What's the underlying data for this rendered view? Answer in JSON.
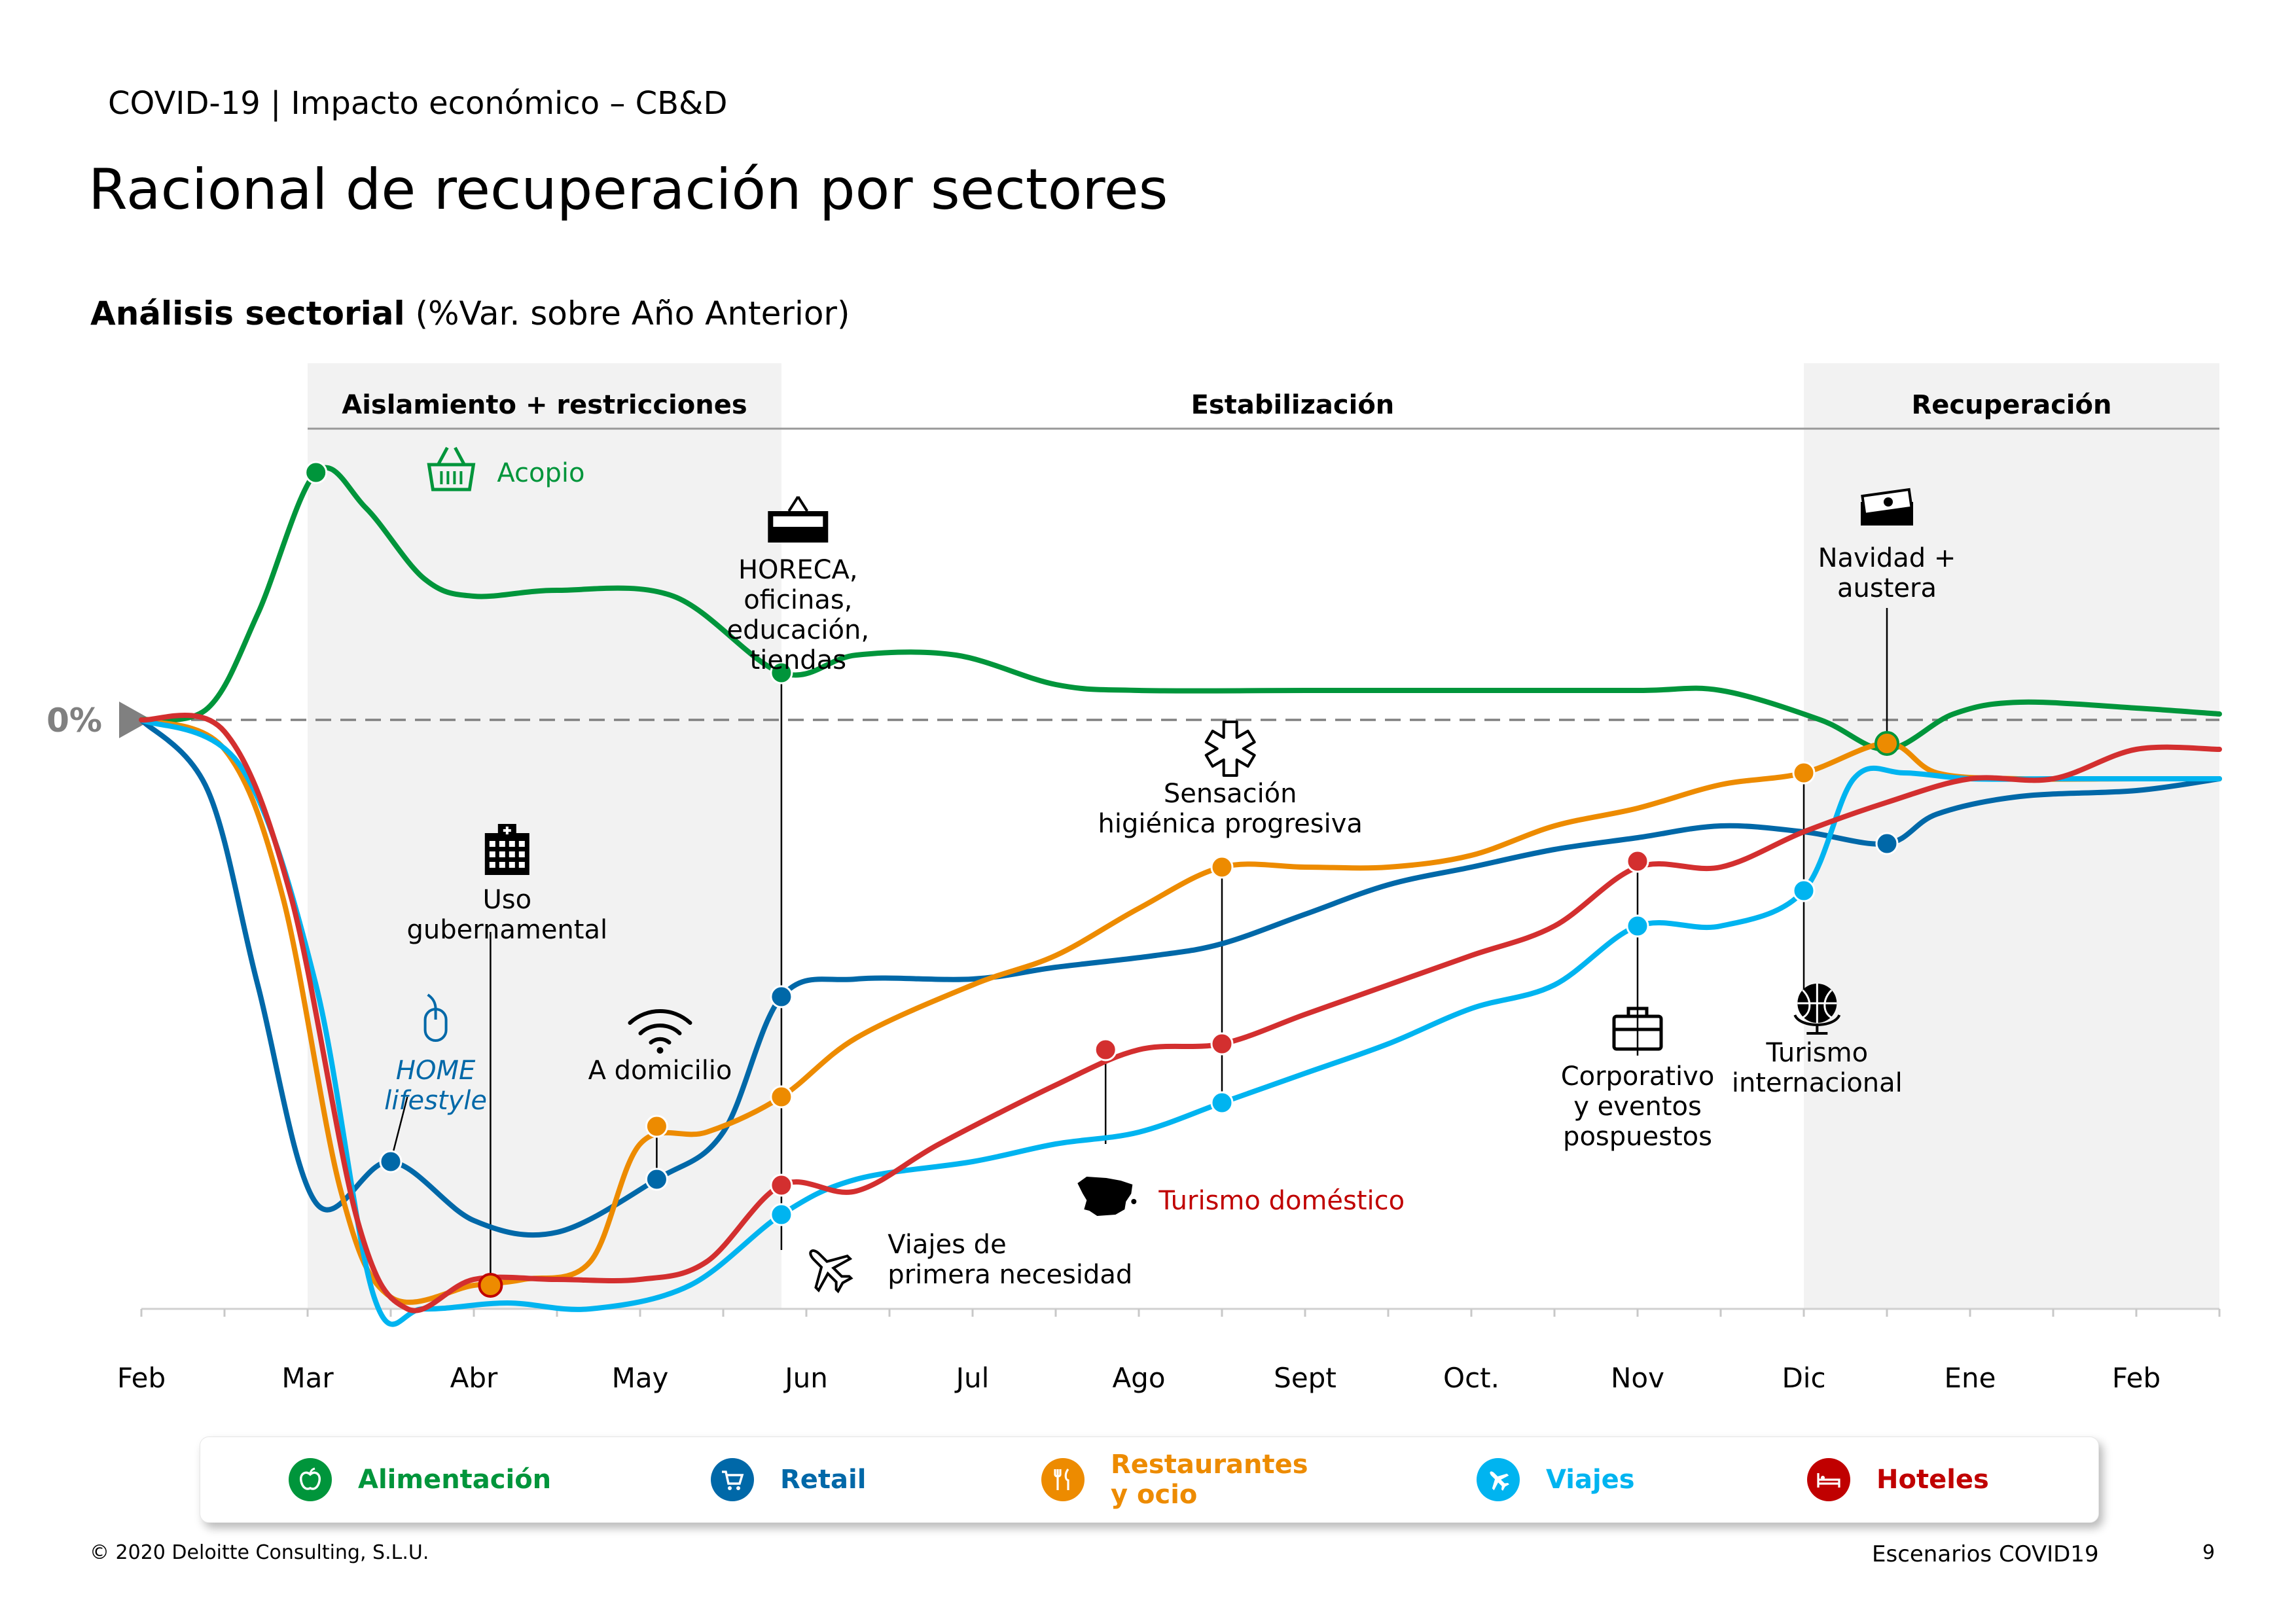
{
  "header": {
    "breadcrumb": "COVID-19 | Impacto económico – CB&D",
    "title": "Racional de recuperación por sectores",
    "subtitle_bold": "Análisis sectorial",
    "subtitle_rest": " (%Var. sobre Año Anterior)"
  },
  "chart_data": {
    "type": "line",
    "x_labels": [
      "Feb",
      "Mar",
      "Abr",
      "May",
      "Jun",
      "Jul",
      "Ago",
      "Sept",
      "Oct.",
      "Nov",
      "Dic",
      "Ene",
      "Feb"
    ],
    "zero_label": "0%",
    "phases": [
      {
        "label": "Aislamiento + restricciones",
        "start": 1,
        "end": 3.85,
        "shaded": true
      },
      {
        "label": "Estabilización",
        "start": 3.85,
        "end": 10,
        "shaded": false
      },
      {
        "label": "Recuperación",
        "start": 10,
        "end": 12.5,
        "shaded": true
      }
    ],
    "ylim": [
      -100,
      42
    ],
    "series": [
      {
        "name": "Alimentación",
        "color": "#00953B",
        "points": [
          [
            0,
            0
          ],
          [
            0.4,
            2
          ],
          [
            0.7,
            18
          ],
          [
            1.05,
            42
          ],
          [
            1.35,
            36
          ],
          [
            1.7,
            24
          ],
          [
            2,
            21
          ],
          [
            2.5,
            22
          ],
          [
            3.2,
            21
          ],
          [
            3.85,
            8
          ],
          [
            4.3,
            11
          ],
          [
            4.9,
            11
          ],
          [
            5.5,
            6
          ],
          [
            6,
            5
          ],
          [
            7,
            5
          ],
          [
            8,
            5
          ],
          [
            9,
            5
          ],
          [
            9.5,
            5
          ],
          [
            10.1,
            0
          ],
          [
            10.5,
            -5
          ],
          [
            10.9,
            1
          ],
          [
            11.3,
            3
          ],
          [
            12,
            2
          ],
          [
            12.5,
            1
          ]
        ]
      },
      {
        "name": "Retail",
        "color": "#0068A8",
        "points": [
          [
            0,
            0
          ],
          [
            0.4,
            -12
          ],
          [
            0.7,
            -45
          ],
          [
            1.05,
            -82
          ],
          [
            1.5,
            -75
          ],
          [
            2,
            -85
          ],
          [
            2.5,
            -87
          ],
          [
            3.1,
            -78
          ],
          [
            3.5,
            -70
          ],
          [
            3.85,
            -47
          ],
          [
            4.3,
            -44
          ],
          [
            5,
            -44
          ],
          [
            5.5,
            -42
          ],
          [
            6.1,
            -40
          ],
          [
            6.5,
            -38
          ],
          [
            7,
            -33
          ],
          [
            7.5,
            -28
          ],
          [
            8,
            -25
          ],
          [
            8.5,
            -22
          ],
          [
            9,
            -20
          ],
          [
            9.5,
            -18
          ],
          [
            10,
            -19
          ],
          [
            10.5,
            -21
          ],
          [
            10.8,
            -16
          ],
          [
            11.3,
            -13
          ],
          [
            12,
            -12
          ],
          [
            12.5,
            -10
          ]
        ]
      },
      {
        "name": "Restaurantes y ocio",
        "color": "#ED8B00",
        "points": [
          [
            0,
            0
          ],
          [
            0.5,
            -5
          ],
          [
            0.85,
            -30
          ],
          [
            1.2,
            -80
          ],
          [
            1.5,
            -98
          ],
          [
            2,
            -96
          ],
          [
            2.3,
            -95
          ],
          [
            2.7,
            -92
          ],
          [
            3,
            -72
          ],
          [
            3.4,
            -70
          ],
          [
            3.85,
            -64
          ],
          [
            4.3,
            -54
          ],
          [
            5,
            -45
          ],
          [
            5.5,
            -40
          ],
          [
            6,
            -32
          ],
          [
            6.5,
            -25
          ],
          [
            7,
            -25
          ],
          [
            7.5,
            -25
          ],
          [
            8,
            -23
          ],
          [
            8.5,
            -18
          ],
          [
            9,
            -15
          ],
          [
            9.5,
            -11
          ],
          [
            10,
            -9
          ],
          [
            10.5,
            -4
          ],
          [
            10.8,
            -9
          ],
          [
            11.3,
            -10
          ],
          [
            12,
            -10
          ],
          [
            12.5,
            -10
          ]
        ]
      },
      {
        "name": "Viajes",
        "color": "#00B4F0",
        "points": [
          [
            0,
            0
          ],
          [
            0.6,
            -8
          ],
          [
            1.05,
            -45
          ],
          [
            1.4,
            -98
          ],
          [
            1.7,
            -100
          ],
          [
            2.2,
            -99
          ],
          [
            2.7,
            -100
          ],
          [
            3.3,
            -96
          ],
          [
            3.85,
            -84
          ],
          [
            4.3,
            -78
          ],
          [
            5,
            -75
          ],
          [
            5.5,
            -72
          ],
          [
            6,
            -70
          ],
          [
            6.5,
            -65
          ],
          [
            7,
            -60
          ],
          [
            7.5,
            -55
          ],
          [
            8,
            -49
          ],
          [
            8.5,
            -45
          ],
          [
            9,
            -35
          ],
          [
            9.5,
            -35
          ],
          [
            10,
            -29
          ],
          [
            10.3,
            -10
          ],
          [
            10.6,
            -9
          ],
          [
            11,
            -10
          ],
          [
            11.5,
            -10
          ],
          [
            12,
            -10
          ],
          [
            12.5,
            -10
          ]
        ]
      },
      {
        "name": "Hoteles",
        "color": "#D32F2F",
        "points": [
          [
            0,
            0
          ],
          [
            0.5,
            -2
          ],
          [
            0.9,
            -30
          ],
          [
            1.3,
            -85
          ],
          [
            1.6,
            -100
          ],
          [
            2,
            -95
          ],
          [
            2.5,
            -95
          ],
          [
            3,
            -95
          ],
          [
            3.4,
            -92
          ],
          [
            3.85,
            -79
          ],
          [
            4.3,
            -80
          ],
          [
            4.8,
            -72
          ],
          [
            5.5,
            -62
          ],
          [
            6,
            -56
          ],
          [
            6.5,
            -55
          ],
          [
            7,
            -50
          ],
          [
            7.5,
            -45
          ],
          [
            8,
            -40
          ],
          [
            8.5,
            -35
          ],
          [
            9,
            -25
          ],
          [
            9.5,
            -25
          ],
          [
            10,
            -19
          ],
          [
            10.5,
            -14
          ],
          [
            11,
            -10
          ],
          [
            11.5,
            -10
          ],
          [
            12,
            -5
          ],
          [
            12.5,
            -5
          ]
        ]
      }
    ],
    "markers": [
      {
        "series": 0,
        "x": 1.05,
        "y": 42
      },
      {
        "series": 0,
        "x": 3.85,
        "y": 8
      },
      {
        "series": 1,
        "x": 1.5,
        "y": -75
      },
      {
        "series": 1,
        "x": 3.1,
        "y": -78
      },
      {
        "series": 1,
        "x": 3.85,
        "y": -47
      },
      {
        "series": 1,
        "x": 10.5,
        "y": -21
      },
      {
        "series": 2,
        "x": 2.1,
        "y": -96
      },
      {
        "series": 2,
        "x": 3.1,
        "y": -69
      },
      {
        "series": 2,
        "x": 3.85,
        "y": -64
      },
      {
        "series": 2,
        "x": 6.5,
        "y": -25
      },
      {
        "series": 2,
        "x": 9,
        "y": -24
      },
      {
        "series": 2,
        "x": 10,
        "y": -9
      },
      {
        "series": 2,
        "x": 10.5,
        "y": -4
      },
      {
        "series": 3,
        "x": 3.85,
        "y": -84
      },
      {
        "series": 3,
        "x": 6.5,
        "y": -65
      },
      {
        "series": 3,
        "x": 9,
        "y": -35
      },
      {
        "series": 3,
        "x": 10,
        "y": -29
      },
      {
        "series": 4,
        "x": 3.85,
        "y": -79
      },
      {
        "series": 4,
        "x": 5.8,
        "y": -56
      },
      {
        "series": 4,
        "x": 6.5,
        "y": -55
      },
      {
        "series": 4,
        "x": 9,
        "y": -24
      }
    ],
    "annotations": [
      {
        "lines": [
          "Acopio"
        ],
        "color": "#00953B",
        "x": 2.1,
        "y": 42,
        "icon": "basket-icon",
        "align": "start"
      },
      {
        "lines": [
          "HORECA,",
          "oficinas,",
          "educación,",
          "tiendas"
        ],
        "color": "#000000",
        "x": 3.95,
        "y": 24,
        "icon": "open-sign-icon",
        "align": "middle"
      },
      {
        "lines": [
          "Uso",
          "gubernamental"
        ],
        "color": "#000000",
        "x": 2.2,
        "y": -32,
        "icon": "hospital-icon",
        "align": "middle"
      },
      {
        "lines": [
          "HOME",
          "lifestyle"
        ],
        "color": "#0068A8",
        "italic": true,
        "x": 1.77,
        "y": -61,
        "icon": "mouse-icon",
        "align": "middle"
      },
      {
        "lines": [
          "A domicilio"
        ],
        "color": "#000000",
        "x": 3.12,
        "y": -61,
        "icon": "wifi-icon",
        "align": "middle"
      },
      {
        "lines": [
          "Viajes de",
          "primera necesidad"
        ],
        "color": "#000000",
        "x": 4.45,
        "y": -91,
        "icon": "airplane-icon",
        "align": "start"
      },
      {
        "lines": [
          "Sensación",
          "higiénica progresiva"
        ],
        "color": "#000000",
        "x": 6.55,
        "y": -14,
        "icon": "sanitary-icon",
        "align": "middle"
      },
      {
        "lines": [
          "Turismo doméstico"
        ],
        "color": "#C00000",
        "x": 6.08,
        "y": -82,
        "icon": "spain-map-icon",
        "align": "start"
      },
      {
        "lines": [
          "Corporativo",
          "y eventos",
          "pospuestos"
        ],
        "color": "#000000",
        "x": 9.0,
        "y": -62,
        "icon": "briefcase-icon",
        "align": "middle"
      },
      {
        "lines": [
          "Turismo",
          "internacional"
        ],
        "color": "#000000",
        "x": 10.08,
        "y": -58,
        "icon": "globe-icon",
        "align": "middle"
      },
      {
        "lines": [
          "Navidad +",
          "austera"
        ],
        "color": "#000000",
        "x": 10.5,
        "y": 26,
        "icon": "money-icon",
        "align": "middle"
      }
    ]
  },
  "legend": [
    {
      "label": "Alimentación",
      "color": "#00953B",
      "icon": "apple-icon"
    },
    {
      "label": "Retail",
      "color": "#0068A8",
      "icon": "cart-icon"
    },
    {
      "label": "Restaurantes y ocio",
      "label_line1": "Restaurantes",
      "label_line2": "y ocio",
      "color": "#ED8B00",
      "icon": "fork-knife-icon"
    },
    {
      "label": "Viajes",
      "color": "#00B4F0",
      "icon": "airplane-icon"
    },
    {
      "label": "Hoteles",
      "color": "#C00000",
      "icon": "bed-icon"
    }
  ],
  "footer": {
    "copyright": "© 2020 Deloitte Consulting, S.L.U.",
    "doc_name": "Escenarios COVID19",
    "page": "9"
  }
}
